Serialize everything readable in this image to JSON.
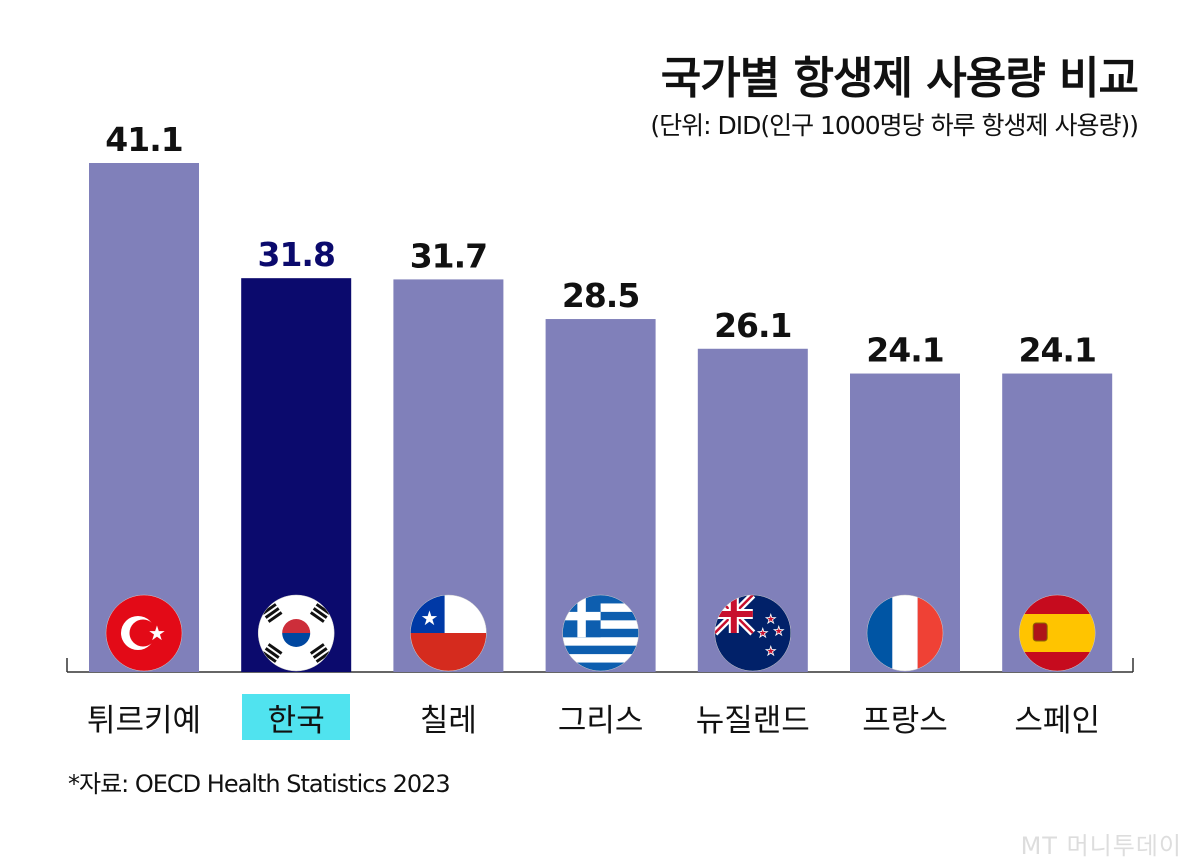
{
  "chart_data": {
    "type": "bar",
    "title": "국가별 항생제 사용량 비교",
    "subtitle": "(단위: DID(인구 1000명당 하루 항생제 사용량))",
    "categories": [
      "튀르키예",
      "한국",
      "칠레",
      "그리스",
      "뉴질랜드",
      "프랑스",
      "스페인"
    ],
    "values": [
      41.1,
      31.8,
      31.7,
      28.5,
      26.1,
      24.1,
      24.1
    ],
    "value_labels": [
      "41.1",
      "31.8",
      "31.7",
      "28.5",
      "26.1",
      "24.1",
      "24.1"
    ],
    "flags": [
      "turkey-flag",
      "south-korea-flag",
      "chile-flag",
      "greece-flag",
      "new-zealand-flag",
      "france-flag",
      "spain-flag"
    ],
    "highlight_index": 1,
    "ylim": [
      0,
      41.1
    ],
    "grid": false,
    "legend": "none",
    "xlabel": "",
    "ylabel": "",
    "colors": {
      "bar": "#8080ba",
      "highlight_bar": "#0b0a6d",
      "highlight_label_bg": "#50e3ef",
      "highlight_value": "#0b0a6d",
      "value": "#111111"
    }
  },
  "source": "*자료: OECD Health Statistics 2023",
  "watermark": "MT 머니투데이"
}
